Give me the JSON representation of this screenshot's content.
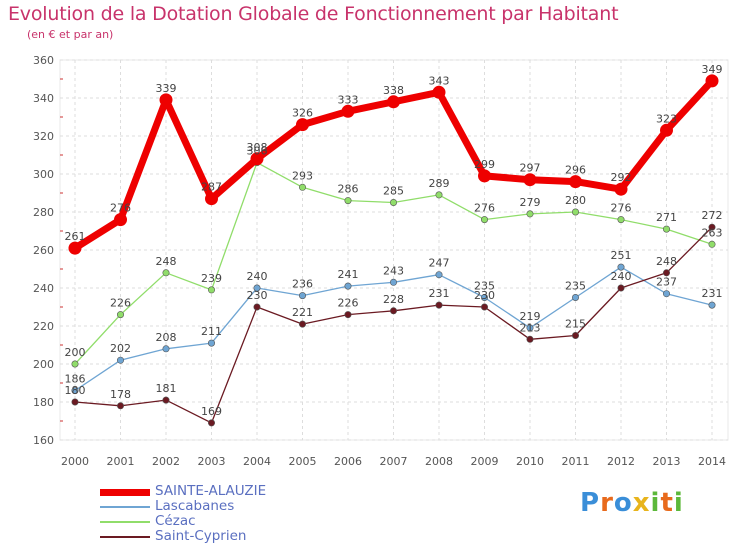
{
  "chart_data": {
    "type": "line",
    "title": "Evolution de la Dotation Globale de Fonctionnement par Habitant",
    "subtitle": "(en € et par an)",
    "xlabel": "",
    "ylabel": "",
    "categories": [
      "2000",
      "2001",
      "2002",
      "2003",
      "2004",
      "2005",
      "2006",
      "2007",
      "2008",
      "2009",
      "2010",
      "2011",
      "2012",
      "2013",
      "2014"
    ],
    "y_ticks": [
      160,
      180,
      200,
      220,
      240,
      260,
      280,
      300,
      320,
      340,
      360
    ],
    "ylim": [
      160,
      360
    ],
    "grid": true,
    "legend_position": "bottom-left",
    "series": [
      {
        "name": "SAINTE-ALAUZIE",
        "color": "#ee0000",
        "values": [
          261,
          276,
          339,
          287,
          308,
          326,
          333,
          338,
          343,
          299,
          297,
          296,
          292,
          323,
          349
        ]
      },
      {
        "name": "Lascabanes",
        "color": "#6fa5d3",
        "values": [
          186,
          202,
          208,
          211,
          240,
          236,
          241,
          243,
          247,
          235,
          219,
          235,
          251,
          237,
          231
        ]
      },
      {
        "name": "Cézac",
        "color": "#90dd6a",
        "values": [
          200,
          226,
          248,
          239,
          306,
          293,
          286,
          285,
          289,
          276,
          279,
          280,
          276,
          271,
          263
        ]
      },
      {
        "name": "Saint-Cyprien",
        "color": "#6b1a22",
        "values": [
          180,
          178,
          181,
          169,
          230,
          221,
          226,
          228,
          231,
          230,
          213,
          215,
          240,
          248,
          272
        ]
      }
    ]
  },
  "logo": {
    "letters": [
      "P",
      "r",
      "o",
      "x",
      "i",
      "t",
      "i"
    ],
    "colors": [
      "#3a8ed8",
      "#e86a1c",
      "#3a8ed8",
      "#e8b41c",
      "#5cb83a",
      "#e86a1c",
      "#5cb83a"
    ]
  }
}
